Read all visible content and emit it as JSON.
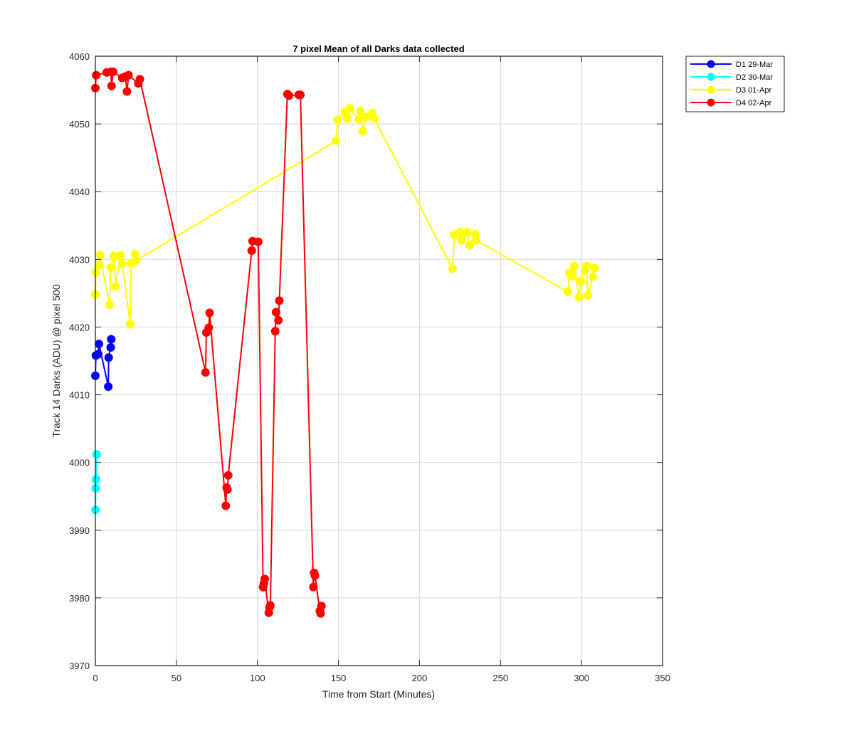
{
  "chart_data": {
    "type": "line",
    "title": "7 pixel Mean of all Darks data collected",
    "xlabel": "Time from Start (Minutes)",
    "ylabel": "Track 14 Darks (ADU) @ pixel 500",
    "xlim": [
      0,
      350
    ],
    "ylim": [
      3970,
      4060
    ],
    "xticks": [
      0,
      50,
      100,
      150,
      200,
      250,
      300,
      350
    ],
    "yticks": [
      3970,
      3980,
      3990,
      4000,
      4010,
      4020,
      4030,
      4040,
      4050,
      4060
    ],
    "grid": true,
    "legend_position": "outside-top-right",
    "series": [
      {
        "name": "D1 29-Mar",
        "color": "#0000ff",
        "x": [
          0,
          0.3,
          1.7,
          2.2,
          8,
          8.2,
          9.5,
          9.8
        ],
        "y": [
          4012.8,
          4015.8,
          4016,
          4017.5,
          4011.2,
          4015.5,
          4017,
          4018.2
        ]
      },
      {
        "name": "D2 30-Mar",
        "color": "#00ffff",
        "x": [
          0,
          0.2,
          0.5,
          0.8
        ],
        "y": [
          3993,
          3996.2,
          3997.5,
          4001.2
        ]
      },
      {
        "name": "D3 01-Apr",
        "color": "#ffff00",
        "x": [
          0,
          0.3,
          2.5,
          3,
          8.7,
          9.5,
          11.5,
          12.5,
          15.5,
          16.5,
          21.5,
          22,
          24.5,
          25,
          148.5,
          149.5,
          154,
          155.5,
          157,
          162.5,
          163.5,
          165,
          167,
          171,
          172,
          220.5,
          221.5,
          225,
          226,
          229.5,
          231,
          234.5,
          235,
          291.5,
          292.5,
          294.5,
          295.5,
          298.5,
          299.5,
          302,
          303,
          304,
          307,
          308
        ],
        "y": [
          4024.8,
          4028.1,
          4029.2,
          4030.6,
          4023.3,
          4028.8,
          4030.5,
          4026,
          4030.6,
          4029.4,
          4020.4,
          4029.4,
          4030.8,
          4029.8,
          4047.5,
          4050.6,
          4051.8,
          4050.8,
          4052.3,
          4050.7,
          4051.9,
          4048.9,
          4051,
          4051.6,
          4050.8,
          4028.6,
          4033.6,
          4034,
          4032.8,
          4034,
          4032.1,
          4033.7,
          4032.8,
          4025.2,
          4028,
          4027.5,
          4029,
          4024.4,
          4026.8,
          4028.4,
          4029,
          4024.7,
          4027.4,
          4028.7
        ]
      },
      {
        "name": "D4 02-Apr",
        "color": "#ff0000",
        "x": [
          0,
          0.5,
          7,
          9.5,
          10,
          11,
          16.5,
          18.5,
          19.5,
          20.5,
          26.5,
          27.5,
          68,
          68.5,
          70,
          70.5,
          80.5,
          81,
          81.5,
          82,
          96.5,
          97,
          100.5,
          103.5,
          104,
          104.5,
          107,
          107.5,
          108,
          111,
          111.5,
          113,
          113.5,
          118.5,
          119.5,
          125.5,
          126.5,
          134.5,
          135,
          135.5,
          138.5,
          139,
          139.5
        ],
        "y": [
          4055.3,
          4057.2,
          4057.6,
          4057.7,
          4055.6,
          4057.7,
          4056.8,
          4057,
          4054.8,
          4057.2,
          4056,
          4056.6,
          4013.3,
          4019.2,
          4019.9,
          4022.1,
          3993.6,
          3996.3,
          3996,
          3998.1,
          4031.3,
          4032.7,
          4032.6,
          3981.6,
          3982.1,
          3982.8,
          3977.8,
          3978.6,
          3978.9,
          4019.4,
          4022.2,
          4021,
          4023.9,
          4054.4,
          4054.2,
          4054.3,
          4054.3,
          3981.6,
          3983.7,
          3983.3,
          3978.1,
          3977.7,
          3978.8
        ]
      }
    ]
  }
}
